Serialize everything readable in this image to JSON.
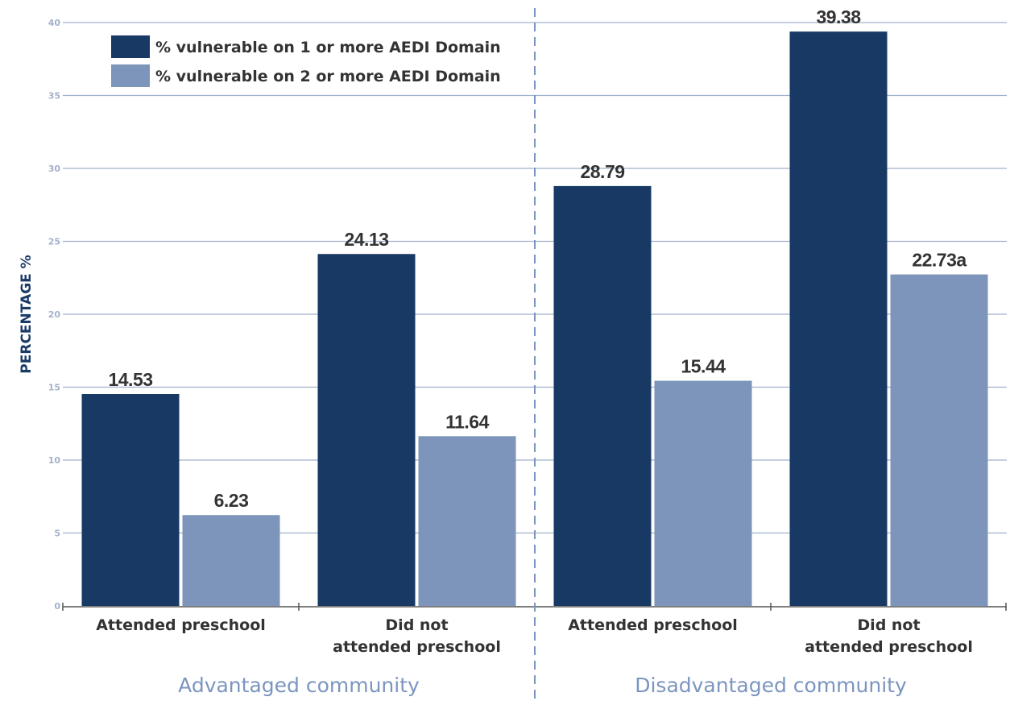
{
  "chart_data": {
    "type": "bar",
    "ylabel": "PERCENTAGE %",
    "ylim": [
      0,
      40
    ],
    "yticks": [
      0,
      5,
      10,
      15,
      20,
      25,
      30,
      35,
      40
    ],
    "grid": true,
    "legend_position": "top-left",
    "categories": [
      "Attended preschool",
      "Did not attended preschool",
      "Attended preschool",
      "Did not attended preschool"
    ],
    "category_lines": [
      [
        "Attended preschool"
      ],
      [
        "Did not",
        "attended preschool"
      ],
      [
        "Attended preschool"
      ],
      [
        "Did not",
        "attended preschool"
      ]
    ],
    "groups": [
      {
        "label": "Advantaged community",
        "categories": [
          0,
          1
        ]
      },
      {
        "label": "Disadvantaged community",
        "categories": [
          2,
          3
        ]
      }
    ],
    "series": [
      {
        "name": "% vulnerable on 1 or more AEDI Domain",
        "color": "#173964",
        "values": [
          14.53,
          24.13,
          28.79,
          39.38
        ],
        "labels": [
          "14.53",
          "24.13",
          "28.79",
          "39.38"
        ]
      },
      {
        "name": "% vulnerable on 2 or more AEDI Domain",
        "color": "#7e95bb",
        "values": [
          6.23,
          11.64,
          15.44,
          22.73
        ],
        "labels": [
          "6.23",
          "11.64",
          "15.44",
          "22.73a"
        ]
      }
    ],
    "colors": {
      "grid": "#9fb0cb",
      "axis": "#555555",
      "divider": "#7b95c0"
    }
  }
}
